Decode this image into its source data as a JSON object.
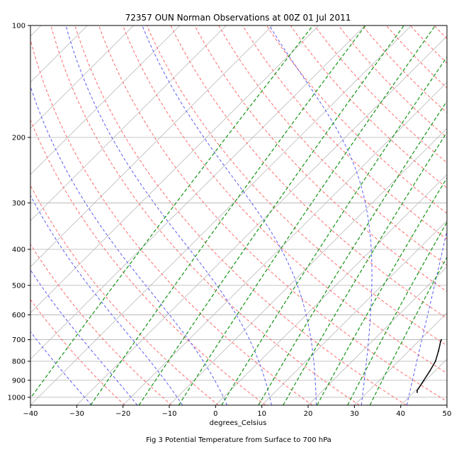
{
  "chart_data": {
    "type": "line",
    "title": "72357 OUN Norman Observations at 00Z 01 Jul 2011",
    "xlabel": "degrees_Celsius",
    "ylabel": "",
    "caption": "Fig 3 Potential Temperature from Surface to 700 hPa",
    "y_scale": "log",
    "y_inverted": true,
    "xlim": [
      -40,
      50
    ],
    "ylim": [
      1050,
      100
    ],
    "x_ticks": [
      -40,
      -30,
      -20,
      -10,
      0,
      10,
      20,
      30,
      40,
      50
    ],
    "y_ticks": [
      1000,
      900,
      800,
      700,
      600,
      500,
      400,
      300,
      200,
      100
    ],
    "grid": true,
    "skew": 35,
    "series": [
      {
        "color": "#000000",
        "points": [
          {
            "p": 970,
            "t": 40.8
          },
          {
            "p": 960,
            "t": 40.4
          },
          {
            "p": 900,
            "t": 39.6
          },
          {
            "p": 850,
            "t": 38.9
          },
          {
            "p": 800,
            "t": 38.0
          },
          {
            "p": 750,
            "t": 36.4
          },
          {
            "p": 720,
            "t": 35.3
          },
          {
            "p": 710,
            "t": 34.9
          },
          {
            "p": 700,
            "t": 34.6
          }
        ]
      }
    ],
    "dry_adiabats_K": [
      250,
      260,
      270,
      280,
      290,
      300,
      310,
      320,
      330,
      340,
      350,
      360,
      370,
      380,
      390,
      400,
      410,
      420,
      430,
      440,
      450,
      460,
      470,
      480,
      490,
      500,
      510,
      520
    ],
    "moist_adiabats_C": [
      -30,
      -20,
      -10,
      0,
      10,
      20,
      30,
      40
    ],
    "mixing_ratios_gkg": [
      0.1,
      0.4,
      1,
      2,
      4,
      7,
      10,
      16,
      24,
      32
    ],
    "colors": {
      "sounding": "#000000",
      "dry_adiabats": "#ff6a6a",
      "moist_adiabats": "#5b5bf5",
      "mixing_ratios": "#149414",
      "isotherms": "#b0b0b0",
      "isobars": "#b0b0b0"
    }
  }
}
